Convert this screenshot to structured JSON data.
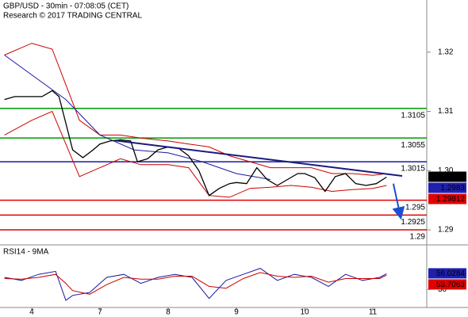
{
  "chart_data": [
    {
      "type": "line",
      "title": "GBP/USD - 30min - 07:08:05 (CET)",
      "subtitle": "Research © 2017 TRADING CENTRAL",
      "xlim": [
        0.535,
        6.79
      ],
      "xticks": [
        {
          "value": 1,
          "label": "4"
        },
        {
          "value": 2,
          "label": "7"
        },
        {
          "value": 3,
          "label": "8"
        },
        {
          "value": 4,
          "label": "9"
        },
        {
          "value": 5,
          "label": "10"
        },
        {
          "value": 6,
          "label": "11"
        }
      ],
      "ylim": [
        1.2876,
        1.3288
      ],
      "yticks": [
        1.32,
        1.31,
        {
          "value": 1.3,
          "label": "1.30"
        },
        1.29
      ],
      "levels": [
        {
          "value": 1.3105,
          "color": "#009900"
        },
        {
          "value": 1.3055,
          "color": "#009900"
        },
        {
          "value": 1.3015,
          "color": "#1a1aa0"
        },
        {
          "value": 1.295,
          "color": "#e00000"
        },
        {
          "value": 1.2925,
          "color": "#e00000"
        },
        {
          "value": 1.29,
          "color": "#e00000"
        }
      ],
      "series": [
        {
          "color": "#cc0000",
          "width": 1,
          "x": [
            0.6,
            1.0,
            1.3,
            1.5,
            1.7,
            2.0,
            2.3,
            2.6,
            3.0,
            3.3,
            3.6,
            3.9,
            4.2,
            4.5,
            4.8,
            5.1,
            5.4,
            5.7,
            6.0,
            6.2
          ],
          "values": [
            1.3195,
            1.3215,
            1.3205,
            1.3145,
            1.3085,
            1.306,
            1.306,
            1.3055,
            1.305,
            1.3045,
            1.304,
            1.3025,
            1.3015,
            1.3005,
            1.3005,
            1.3005,
            1.2995,
            1.2995,
            1.2992,
            1.2995
          ]
        },
        {
          "color": "#cc0000",
          "width": 1,
          "x": [
            0.6,
            1.0,
            1.3,
            1.5,
            1.7,
            2.0,
            2.3,
            2.6,
            3.0,
            3.3,
            3.6,
            3.9,
            4.2,
            4.5,
            4.8,
            5.1,
            5.4,
            5.7,
            6.0,
            6.2
          ],
          "values": [
            1.306,
            1.3085,
            1.31,
            1.3045,
            1.299,
            1.3005,
            1.302,
            1.301,
            1.301,
            1.3005,
            1.2958,
            1.2955,
            1.297,
            1.2972,
            1.2975,
            1.2972,
            1.2965,
            1.2968,
            1.297,
            1.2975
          ]
        },
        {
          "color": "#1a1aa0",
          "width": 1,
          "x": [
            0.6,
            1.5,
            2.0,
            2.5,
            3.0,
            3.5,
            4.0,
            4.5
          ],
          "values": [
            1.3195,
            1.312,
            1.306,
            1.3035,
            1.303,
            1.3015,
            1.2995,
            1.2985
          ]
        },
        {
          "color": "#000000",
          "width": 1.3,
          "x": [
            0.6,
            0.75,
            0.9,
            1.0,
            1.15,
            1.3,
            1.4,
            1.5,
            1.6,
            1.75,
            1.9,
            2.0,
            2.15,
            2.3,
            2.45,
            2.55,
            2.7,
            2.85,
            3.0,
            3.15,
            3.3,
            3.45,
            3.6,
            3.75,
            3.9,
            4.0,
            4.15,
            4.3,
            4.45,
            4.6,
            4.75,
            4.9,
            5.0,
            5.15,
            5.3,
            5.45,
            5.6,
            5.75,
            5.9,
            6.05,
            6.2
          ],
          "values": [
            1.312,
            1.3125,
            1.3125,
            1.3125,
            1.3125,
            1.3135,
            1.3125,
            1.308,
            1.3035,
            1.3022,
            1.3035,
            1.3045,
            1.305,
            1.3052,
            1.305,
            1.3015,
            1.302,
            1.3035,
            1.304,
            1.3038,
            1.3025,
            1.3,
            1.2958,
            1.297,
            1.2978,
            1.298,
            1.2978,
            1.3005,
            1.2985,
            1.2975,
            1.2985,
            1.2995,
            1.2995,
            1.2988,
            1.2965,
            1.299,
            1.2995,
            1.2978,
            1.2975,
            1.2978,
            1.2989
          ]
        }
      ],
      "trendlines": [
        {
          "color": "#1a1a80",
          "x": [
            2.22,
            6.43
          ],
          "values": [
            1.3051,
            1.2991
          ]
        },
        {
          "color": "#1a4fd0",
          "arrow": true,
          "x": [
            6.3,
            6.4
          ],
          "values": [
            1.2978,
            1.2925
          ]
        }
      ],
      "boxes": [
        {
          "value": 1.2989,
          "color": "#000000"
        },
        {
          "value": 1.2983,
          "color": "#1f1fb0"
        },
        {
          "value": 1.29812,
          "color": "#e00000"
        }
      ]
    },
    {
      "type": "line",
      "title": "RSI14 - 9MA",
      "xlim": [
        0.535,
        6.79
      ],
      "ylim": [
        0,
        100
      ],
      "yticks": [
        30
      ],
      "series": [
        {
          "color": "#1a1aa0",
          "width": 1,
          "x": [
            0.6,
            0.85,
            1.1,
            1.35,
            1.5,
            1.6,
            1.85,
            2.1,
            2.35,
            2.6,
            2.85,
            3.1,
            3.35,
            3.6,
            3.85,
            4.1,
            4.35,
            4.6,
            4.85,
            5.1,
            5.35,
            5.6,
            5.85,
            6.1,
            6.2
          ],
          "values": [
            50,
            45,
            55,
            60,
            12,
            20,
            25,
            50,
            55,
            40,
            50,
            55,
            50,
            15,
            45,
            55,
            65,
            45,
            55,
            50,
            35,
            55,
            45,
            50,
            56.0284
          ]
        },
        {
          "color": "#cc0000",
          "width": 1,
          "x": [
            0.6,
            0.85,
            1.1,
            1.35,
            1.5,
            1.6,
            1.85,
            2.1,
            2.35,
            2.6,
            2.85,
            3.1,
            3.35,
            3.6,
            3.85,
            4.1,
            4.35,
            4.6,
            4.85,
            5.1,
            5.35,
            5.6,
            5.85,
            6.1,
            6.2
          ],
          "values": [
            48,
            47,
            50,
            55,
            40,
            28,
            22,
            38,
            50,
            47,
            47,
            52,
            52,
            35,
            32,
            48,
            58,
            52,
            50,
            52,
            42,
            48,
            48,
            48,
            53.7063
          ]
        }
      ],
      "boxes": [
        {
          "value": 56.0284,
          "color": "#1f1fb0"
        },
        {
          "value": 53.7063,
          "color": "#e00000"
        }
      ]
    }
  ]
}
